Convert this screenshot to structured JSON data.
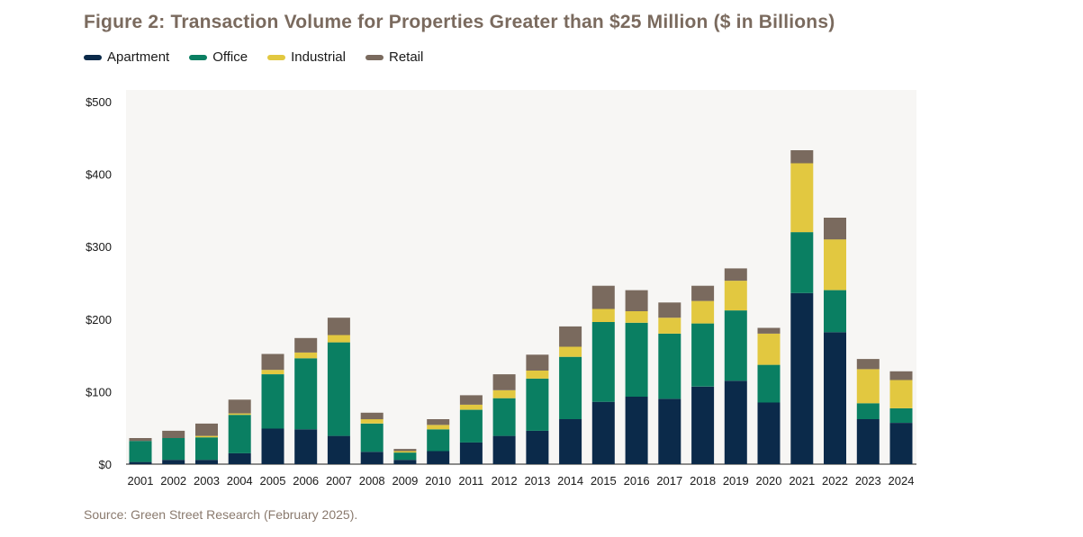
{
  "chart_data": {
    "type": "bar",
    "stacked": true,
    "title": "Figure 2: Transaction Volume for Properties Greater than $25 Million ($ in Billions)",
    "source": "Source: Green Street Research (February 2025).",
    "ylim": [
      0,
      500
    ],
    "yticks": [
      "$0",
      "$100",
      "$200",
      "$300",
      "$400",
      "$500"
    ],
    "ytick_values": [
      0,
      100,
      200,
      300,
      400,
      500
    ],
    "legend_position": "top-left",
    "categories": [
      "2001",
      "2002",
      "2003",
      "2004",
      "2005",
      "2006",
      "2007",
      "2008",
      "2009",
      "2010",
      "2011",
      "2012",
      "2013",
      "2014",
      "2015",
      "2016",
      "2017",
      "2018",
      "2019",
      "2020",
      "2021",
      "2022",
      "2023",
      "2024"
    ],
    "series": [
      {
        "name": "Apartment",
        "color": "#0b2a4a",
        "values": [
          3,
          6,
          6,
          15,
          49,
          48,
          39,
          17,
          6,
          18,
          30,
          39,
          46,
          62,
          86,
          93,
          90,
          107,
          115,
          85,
          236,
          182,
          62,
          57
        ]
      },
      {
        "name": "Office",
        "color": "#0a7f62",
        "values": [
          29,
          30,
          31,
          53,
          75,
          98,
          129,
          39,
          10,
          30,
          45,
          52,
          72,
          86,
          110,
          102,
          90,
          87,
          97,
          52,
          84,
          58,
          22,
          20
        ]
      },
      {
        "name": "Industrial",
        "color": "#e2c840",
        "values": [
          0,
          0,
          2,
          2,
          6,
          8,
          10,
          6,
          2,
          6,
          7,
          11,
          11,
          14,
          18,
          16,
          22,
          31,
          41,
          43,
          95,
          70,
          47,
          39
        ]
      },
      {
        "name": "Retail",
        "color": "#7a6a5e",
        "values": [
          4,
          10,
          17,
          19,
          22,
          20,
          24,
          9,
          3,
          8,
          13,
          22,
          22,
          28,
          32,
          29,
          21,
          21,
          17,
          8,
          18,
          30,
          14,
          12
        ]
      }
    ]
  }
}
